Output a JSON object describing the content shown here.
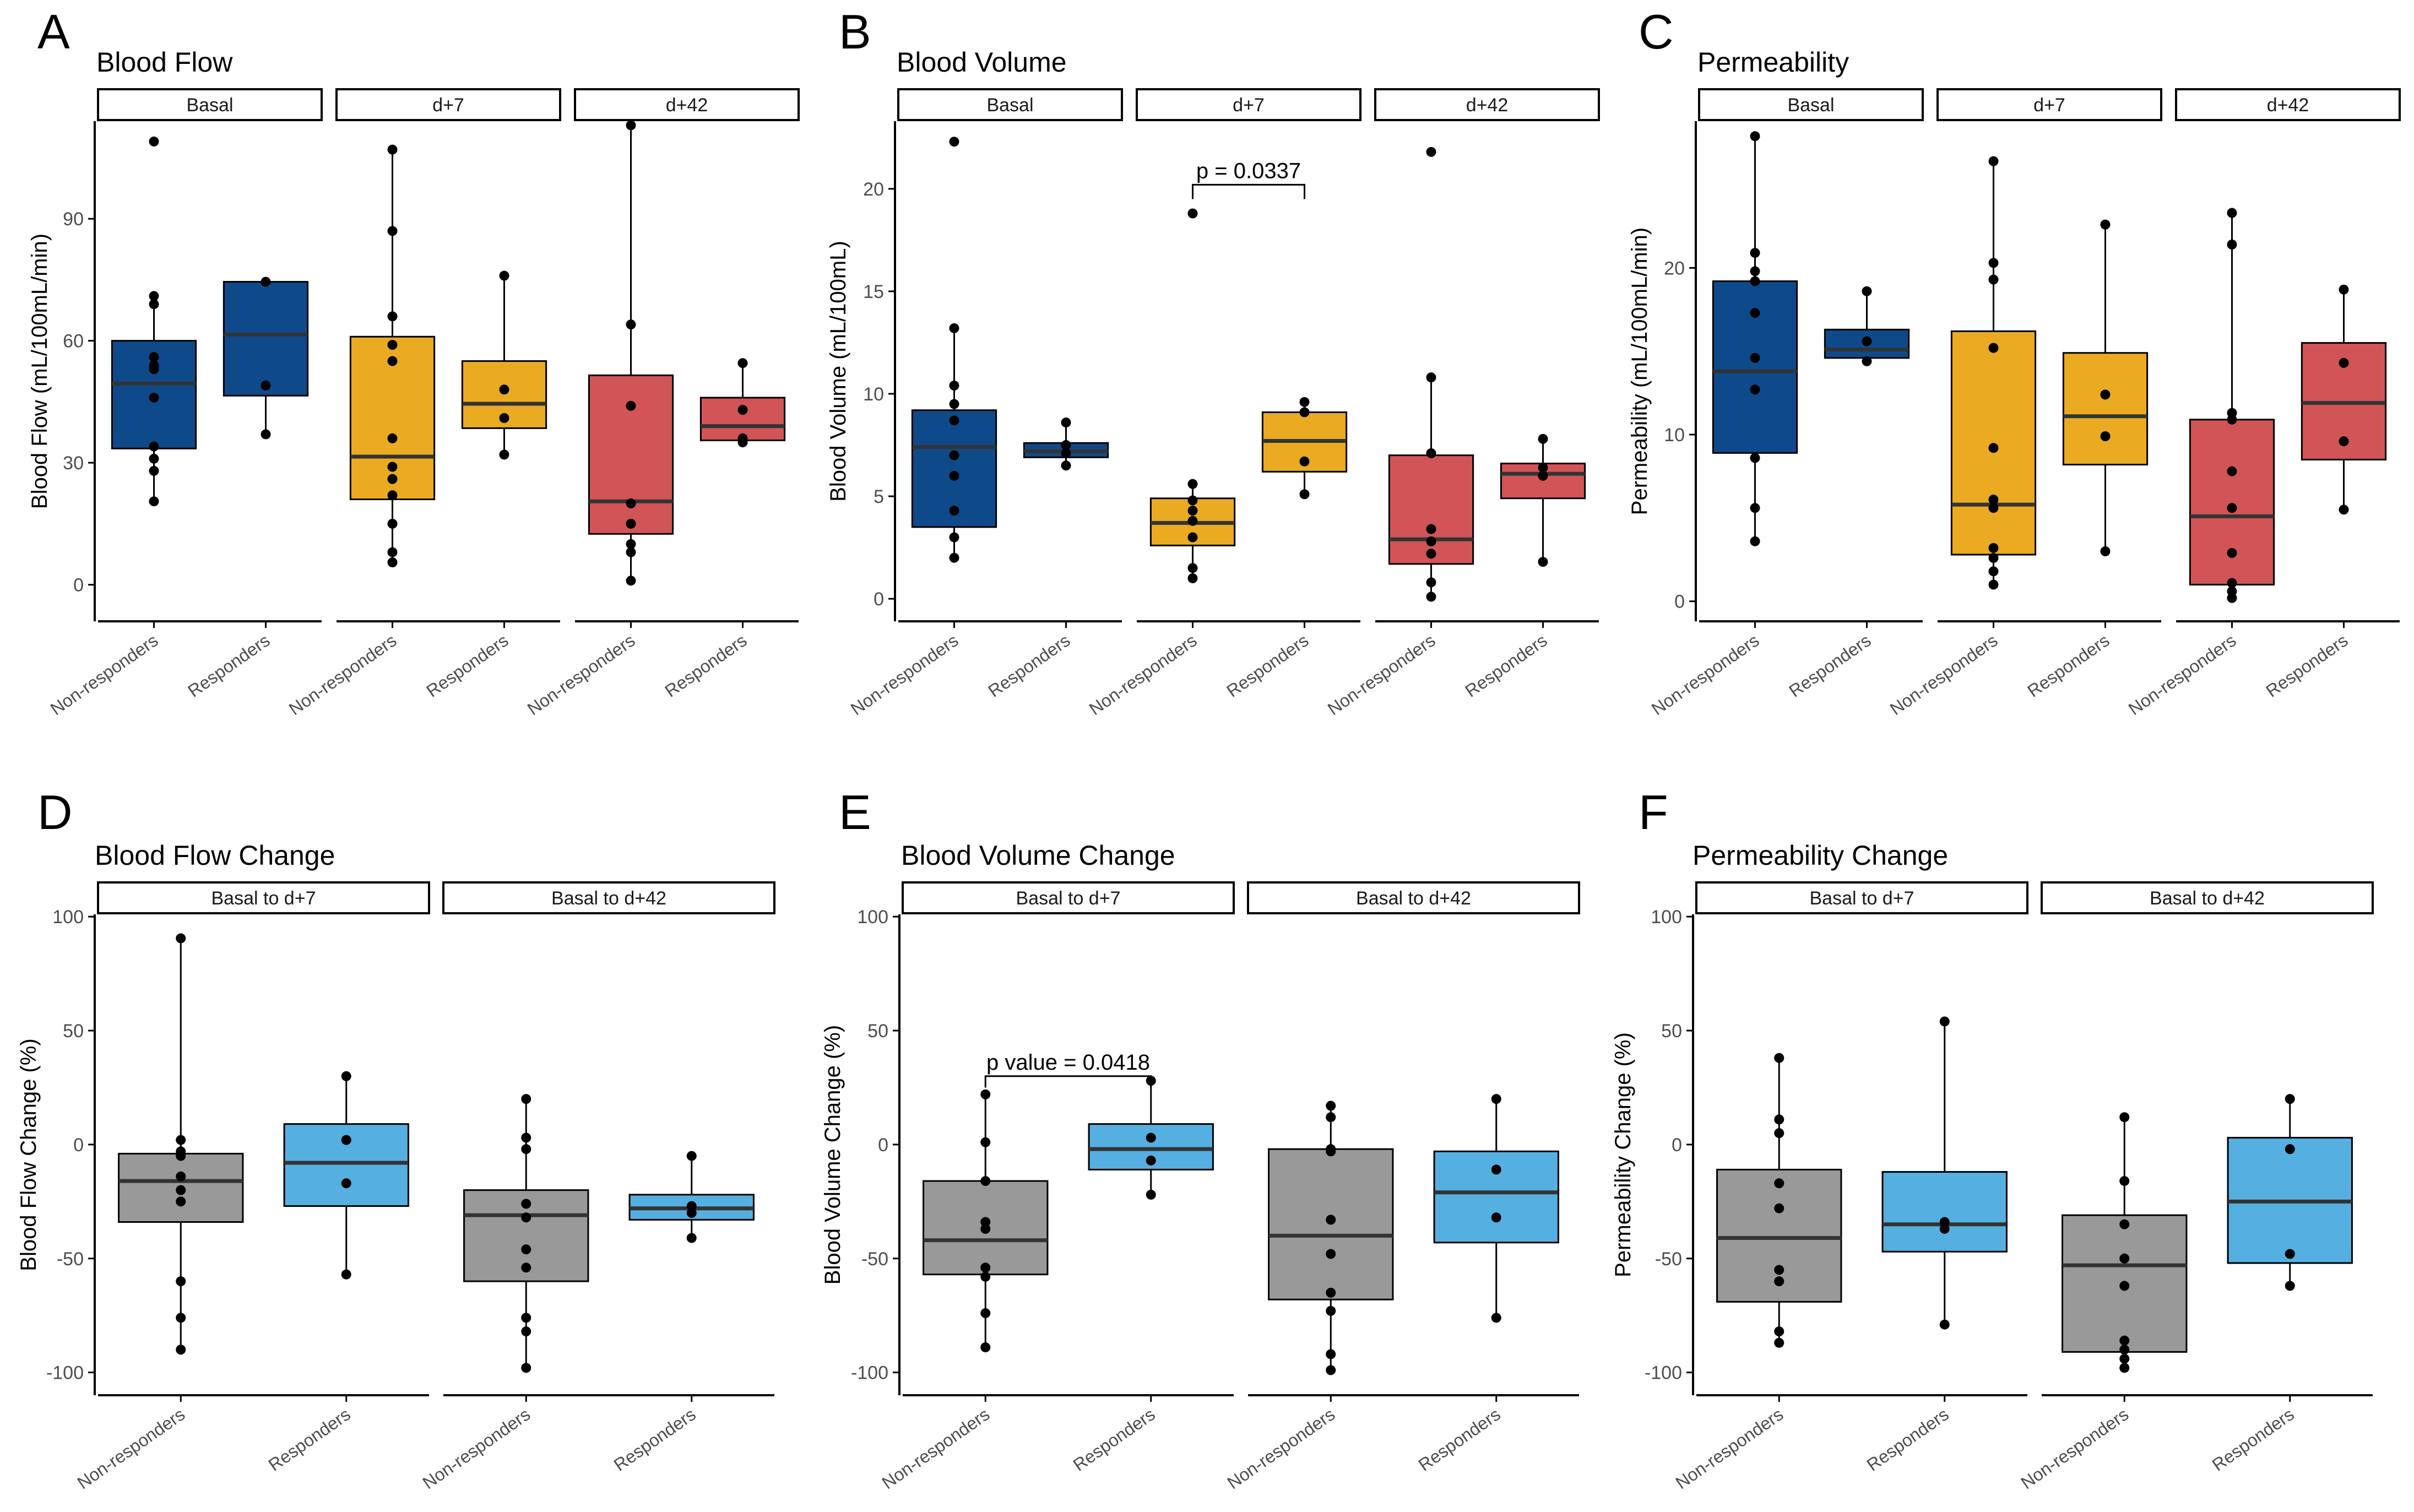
{
  "figure": {
    "colors": {
      "basal": "#0e4a8a",
      "d7": "#eaab22",
      "d42": "#d15457",
      "nonresp_change": "#999999",
      "resp_change": "#56afe1",
      "point": "#000000",
      "axis": "#000000",
      "median": "#333333"
    }
  },
  "chart_data": [
    {
      "panel_letter": "A",
      "title": "Blood Flow",
      "type": "boxplot",
      "ylabel": "Blood Flow (mL/100mL/min)",
      "ylim": [
        -9,
        114
      ],
      "yticks": [
        0,
        30,
        60,
        90
      ],
      "categories": [
        "Non-responders",
        "Responders"
      ],
      "facets": [
        {
          "label": "Basal",
          "color_key": "basal",
          "boxes": [
            {
              "q1": 33.5,
              "median": 49.5,
              "q3": 60,
              "wlo": 20.5,
              "whi": 71,
              "points": [
                20.5,
                28,
                31,
                34,
                46,
                53,
                54,
                56,
                69,
                71,
                109
              ]
            },
            {
              "q1": 46.5,
              "median": 61.5,
              "q3": 74.5,
              "wlo": 37,
              "whi": 74.5,
              "points": [
                37,
                49,
                74.5
              ]
            }
          ]
        },
        {
          "label": "d+7",
          "color_key": "d7",
          "boxes": [
            {
              "q1": 21,
              "median": 31.5,
              "q3": 61,
              "wlo": 5.5,
              "whi": 107,
              "points": [
                5.5,
                8,
                15,
                22,
                26,
                29,
                36,
                55,
                59,
                66,
                87,
                107
              ]
            },
            {
              "q1": 38.5,
              "median": 44.5,
              "q3": 55,
              "wlo": 32,
              "whi": 76,
              "points": [
                32,
                41,
                48,
                76
              ]
            }
          ]
        },
        {
          "label": "d+42",
          "color_key": "d42",
          "boxes": [
            {
              "q1": 12.5,
              "median": 20.5,
              "q3": 51.5,
              "wlo": 1,
              "whi": 113,
              "points": [
                1,
                8,
                10,
                15,
                20,
                44,
                64,
                113
              ]
            },
            {
              "q1": 35.5,
              "median": 39,
              "q3": 46,
              "wlo": 35,
              "whi": 54.5,
              "points": [
                35,
                36,
                43,
                54.5
              ]
            }
          ]
        }
      ],
      "annotation": null
    },
    {
      "panel_letter": "B",
      "title": "Blood Volume",
      "type": "boxplot",
      "ylabel": "Blood Volume (mL/100mL)",
      "ylim": [
        -1.1,
        23.3
      ],
      "yticks": [
        0,
        5,
        10,
        15,
        20
      ],
      "categories": [
        "Non-responders",
        "Responders"
      ],
      "facets": [
        {
          "label": "Basal",
          "color_key": "basal",
          "boxes": [
            {
              "q1": 3.5,
              "median": 7.4,
              "q3": 9.2,
              "wlo": 2,
              "whi": 13.2,
              "points": [
                2,
                3,
                4.3,
                6,
                7,
                8.7,
                9.5,
                10.4,
                13.2,
                22.3
              ]
            },
            {
              "q1": 6.9,
              "median": 7.2,
              "q3": 7.6,
              "wlo": 6.5,
              "whi": 8.6,
              "points": [
                6.5,
                7.1,
                7.5,
                8.6
              ]
            }
          ]
        },
        {
          "label": "d+7",
          "color_key": "d7",
          "boxes": [
            {
              "q1": 2.6,
              "median": 3.7,
              "q3": 4.9,
              "wlo": 1,
              "whi": 5.6,
              "points": [
                1,
                1.5,
                3,
                3.8,
                4.3,
                4.8,
                5.6,
                18.8
              ]
            },
            {
              "q1": 6.2,
              "median": 7.7,
              "q3": 9.1,
              "wlo": 5.1,
              "whi": 9.6,
              "points": [
                5.1,
                6.7,
                9.1,
                9.6
              ]
            }
          ]
        },
        {
          "label": "d+42",
          "color_key": "d42",
          "boxes": [
            {
              "q1": 1.7,
              "median": 2.9,
              "q3": 7,
              "wlo": 0.1,
              "whi": 10.8,
              "points": [
                0.1,
                0.8,
                2.2,
                2.8,
                3.4,
                7.1,
                10.8,
                21.8
              ]
            },
            {
              "q1": 4.9,
              "median": 6.1,
              "q3": 6.6,
              "wlo": 1.8,
              "whi": 7.8,
              "points": [
                1.8,
                6,
                6.4,
                7.8
              ]
            }
          ]
        }
      ],
      "annotation": {
        "facet": 1,
        "text": "p = 0.0337",
        "y": 20.2,
        "drop": 19.5
      }
    },
    {
      "panel_letter": "C",
      "title": "Permeability",
      "type": "boxplot",
      "ylabel": "Permeability (mL/100mL/min)",
      "ylim": [
        -1.2,
        28.8
      ],
      "yticks": [
        0,
        10,
        20
      ],
      "categories": [
        "Non-responders",
        "Responders"
      ],
      "facets": [
        {
          "label": "Basal",
          "color_key": "basal",
          "boxes": [
            {
              "q1": 8.9,
              "median": 13.8,
              "q3": 19.2,
              "wlo": 3.6,
              "whi": 27.9,
              "points": [
                3.6,
                5.6,
                8.6,
                12.7,
                14.6,
                17.3,
                19.2,
                19.8,
                20.9,
                27.9
              ]
            },
            {
              "q1": 14.6,
              "median": 15.1,
              "q3": 16.3,
              "wlo": 14.4,
              "whi": 18.6,
              "points": [
                14.4,
                15.6,
                18.6
              ]
            }
          ]
        },
        {
          "label": "d+7",
          "color_key": "d7",
          "boxes": [
            {
              "q1": 2.8,
              "median": 5.8,
              "q3": 16.2,
              "wlo": 1,
              "whi": 26.4,
              "points": [
                1,
                1.8,
                2.6,
                3.2,
                5.6,
                6.1,
                9.2,
                15.2,
                19.3,
                20.3,
                26.4
              ]
            },
            {
              "q1": 8.2,
              "median": 11.1,
              "q3": 14.9,
              "wlo": 3,
              "whi": 22.6,
              "points": [
                3,
                9.9,
                12.4,
                22.6
              ]
            }
          ]
        },
        {
          "label": "d+42",
          "color_key": "d42",
          "boxes": [
            {
              "q1": 1,
              "median": 5.1,
              "q3": 10.9,
              "wlo": 0.2,
              "whi": 23.3,
              "points": [
                0.2,
                0.6,
                1.1,
                2.9,
                5.6,
                7.8,
                10.9,
                11.3,
                21.4,
                23.3
              ]
            },
            {
              "q1": 8.5,
              "median": 11.9,
              "q3": 15.5,
              "wlo": 5.5,
              "whi": 18.7,
              "points": [
                5.5,
                9.6,
                14.3,
                18.7
              ]
            }
          ]
        }
      ],
      "annotation": null
    },
    {
      "panel_letter": "D",
      "title": "Blood Flow Change",
      "type": "boxplot",
      "ylabel": "Blood Flow Change (%)",
      "ylim": [
        -110,
        101
      ],
      "yticks": [
        -100,
        -50,
        0,
        50,
        100
      ],
      "categories": [
        "Non-responders",
        "Responders"
      ],
      "facets": [
        {
          "label": "Basal to d+7",
          "color_key": "change",
          "boxes": [
            {
              "q1": -34,
              "median": -16,
              "q3": -4,
              "wlo": -90,
              "whi": 90.5,
              "points": [
                -90,
                -76,
                -60,
                -25,
                -20,
                -14,
                -5,
                -3,
                2,
                90.5
              ]
            },
            {
              "q1": -27,
              "median": -8,
              "q3": 9,
              "wlo": -57,
              "whi": 30,
              "points": [
                -57,
                -17,
                2,
                30
              ]
            }
          ]
        },
        {
          "label": "Basal to d+42",
          "color_key": "change",
          "boxes": [
            {
              "q1": -60,
              "median": -31,
              "q3": -20,
              "wlo": -98,
              "whi": 20,
              "points": [
                -98,
                -82,
                -76,
                -54,
                -46,
                -32,
                -26,
                -2,
                3,
                20
              ]
            },
            {
              "q1": -33,
              "median": -28,
              "q3": -22,
              "wlo": -41,
              "whi": -5,
              "points": [
                -41,
                -30,
                -27,
                -5
              ]
            }
          ]
        }
      ],
      "annotation": null
    },
    {
      "panel_letter": "E",
      "title": "Blood Volume Change",
      "type": "boxplot",
      "ylabel": "Blood Volume Change (%)",
      "ylim": [
        -110,
        101
      ],
      "yticks": [
        -100,
        -50,
        0,
        50,
        100
      ],
      "categories": [
        "Non-responders",
        "Responders"
      ],
      "facets": [
        {
          "label": "Basal to d+7",
          "color_key": "change",
          "boxes": [
            {
              "q1": -57,
              "median": -42,
              "q3": -16,
              "wlo": -89,
              "whi": 22,
              "points": [
                -89,
                -74,
                -58,
                -54,
                -37,
                -34,
                -16,
                1,
                22
              ]
            },
            {
              "q1": -11,
              "median": -2,
              "q3": 9,
              "wlo": -22,
              "whi": 28,
              "points": [
                -22,
                -7,
                3,
                28
              ]
            }
          ]
        },
        {
          "label": "Basal to d+42",
          "color_key": "change",
          "boxes": [
            {
              "q1": -68,
              "median": -40,
              "q3": -2,
              "wlo": -99,
              "whi": 17,
              "points": [
                -99,
                -92,
                -73,
                -65,
                -48,
                -33,
                -3,
                -2,
                12,
                17
              ]
            },
            {
              "q1": -43,
              "median": -21,
              "q3": -3,
              "wlo": -76,
              "whi": 20,
              "points": [
                -76,
                -32,
                -11,
                20
              ]
            }
          ]
        }
      ],
      "annotation": {
        "facet": 0,
        "text": "p value = 0.0418",
        "y": 30,
        "drop": 25
      }
    },
    {
      "panel_letter": "F",
      "title": "Permeability Change",
      "type": "boxplot",
      "ylabel": "Permeability Change (%)",
      "ylim": [
        -110,
        101
      ],
      "yticks": [
        -100,
        -50,
        0,
        50,
        100
      ],
      "categories": [
        "Non-responders",
        "Responders"
      ],
      "facets": [
        {
          "label": "Basal to d+7",
          "color_key": "change",
          "boxes": [
            {
              "q1": -69,
              "median": -41,
              "q3": -11,
              "wlo": -87,
              "whi": 38,
              "points": [
                -87,
                -82,
                -60,
                -55,
                -28,
                -17,
                5,
                11,
                38
              ]
            },
            {
              "q1": -47,
              "median": -35,
              "q3": -12,
              "wlo": -79,
              "whi": 54,
              "points": [
                -79,
                -37,
                -34,
                54
              ]
            }
          ]
        },
        {
          "label": "Basal to d+42",
          "color_key": "change",
          "boxes": [
            {
              "q1": -91,
              "median": -53,
              "q3": -31,
              "wlo": -98,
              "whi": 12,
              "points": [
                -98,
                -94,
                -90,
                -86,
                -62,
                -50,
                -35,
                -16,
                12
              ]
            },
            {
              "q1": -52,
              "median": -25,
              "q3": 3,
              "wlo": -62,
              "whi": 20,
              "points": [
                -62,
                -48,
                -2,
                20
              ]
            }
          ]
        }
      ],
      "annotation": null
    }
  ]
}
